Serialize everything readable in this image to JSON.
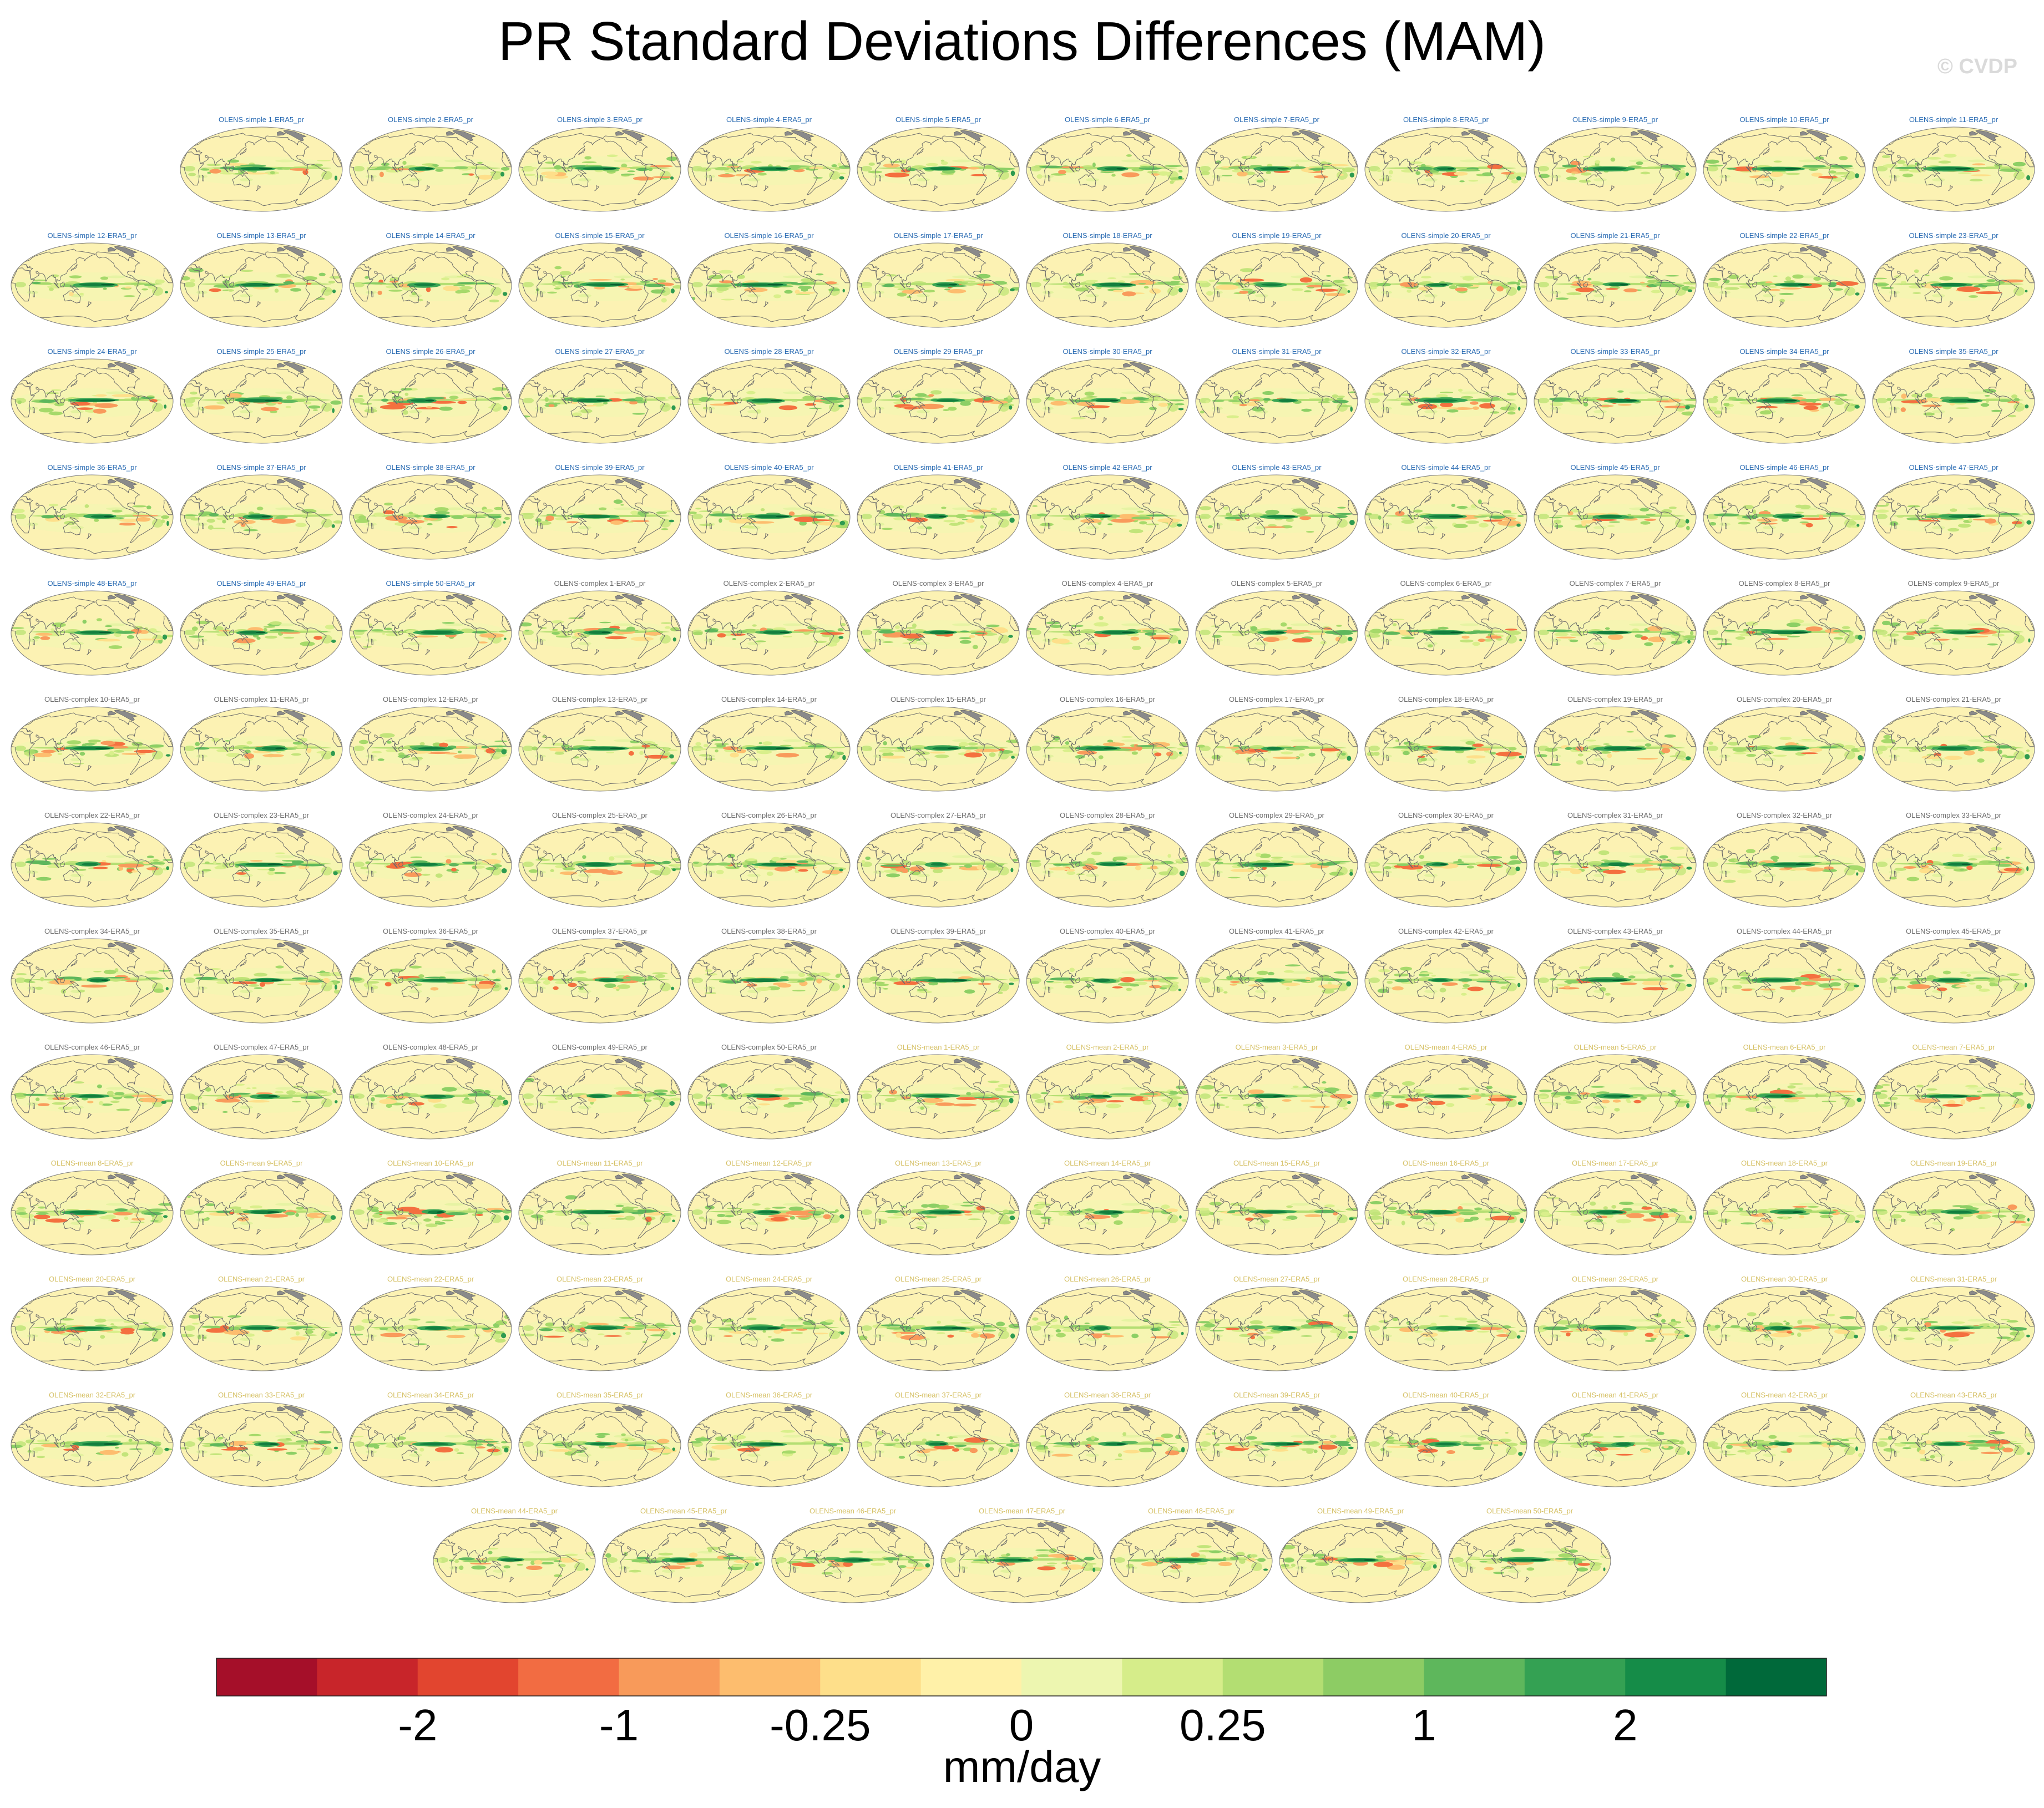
{
  "title": "PR Standard Deviations Differences (MAM)",
  "watermark": "© CVDP",
  "panel_groups": [
    {
      "label_color": "#2b6cb3",
      "labels": [
        "OLENS-simple 1-ERA5_pr",
        "OLENS-simple 2-ERA5_pr",
        "OLENS-simple 3-ERA5_pr",
        "OLENS-simple 4-ERA5_pr",
        "OLENS-simple 5-ERA5_pr",
        "OLENS-simple 6-ERA5_pr",
        "OLENS-simple 7-ERA5_pr",
        "OLENS-simple 8-ERA5_pr",
        "OLENS-simple 9-ERA5_pr",
        "OLENS-simple 10-ERA5_pr",
        "OLENS-simple 11-ERA5_pr",
        "OLENS-simple 12-ERA5_pr",
        "OLENS-simple 13-ERA5_pr",
        "OLENS-simple 14-ERA5_pr",
        "OLENS-simple 15-ERA5_pr",
        "OLENS-simple 16-ERA5_pr",
        "OLENS-simple 17-ERA5_pr",
        "OLENS-simple 18-ERA5_pr",
        "OLENS-simple 19-ERA5_pr",
        "OLENS-simple 20-ERA5_pr",
        "OLENS-simple 21-ERA5_pr",
        "OLENS-simple 22-ERA5_pr",
        "OLENS-simple 23-ERA5_pr",
        "OLENS-simple 24-ERA5_pr",
        "OLENS-simple 25-ERA5_pr",
        "OLENS-simple 26-ERA5_pr",
        "OLENS-simple 27-ERA5_pr",
        "OLENS-simple 28-ERA5_pr",
        "OLENS-simple 29-ERA5_pr",
        "OLENS-simple 30-ERA5_pr",
        "OLENS-simple 31-ERA5_pr",
        "OLENS-simple 32-ERA5_pr",
        "OLENS-simple 33-ERA5_pr",
        "OLENS-simple 34-ERA5_pr",
        "OLENS-simple 35-ERA5_pr",
        "OLENS-simple 36-ERA5_pr",
        "OLENS-simple 37-ERA5_pr",
        "OLENS-simple 38-ERA5_pr",
        "OLENS-simple 39-ERA5_pr",
        "OLENS-simple 40-ERA5_pr",
        "OLENS-simple 41-ERA5_pr",
        "OLENS-simple 42-ERA5_pr",
        "OLENS-simple 43-ERA5_pr",
        "OLENS-simple 44-ERA5_pr",
        "OLENS-simple 45-ERA5_pr",
        "OLENS-simple 46-ERA5_pr",
        "OLENS-simple 47-ERA5_pr",
        "OLENS-simple 48-ERA5_pr",
        "OLENS-simple 49-ERA5_pr",
        "OLENS-simple 50-ERA5_pr"
      ]
    },
    {
      "label_color": "#6e6e6e",
      "labels": [
        "OLENS-complex 1-ERA5_pr",
        "OLENS-complex 2-ERA5_pr",
        "OLENS-complex 3-ERA5_pr",
        "OLENS-complex 4-ERA5_pr",
        "OLENS-complex 5-ERA5_pr",
        "OLENS-complex 6-ERA5_pr",
        "OLENS-complex 7-ERA5_pr",
        "OLENS-complex 8-ERA5_pr",
        "OLENS-complex 9-ERA5_pr",
        "OLENS-complex 10-ERA5_pr",
        "OLENS-complex 11-ERA5_pr",
        "OLENS-complex 12-ERA5_pr",
        "OLENS-complex 13-ERA5_pr",
        "OLENS-complex 14-ERA5_pr",
        "OLENS-complex 15-ERA5_pr",
        "OLENS-complex 16-ERA5_pr",
        "OLENS-complex 17-ERA5_pr",
        "OLENS-complex 18-ERA5_pr",
        "OLENS-complex 19-ERA5_pr",
        "OLENS-complex 20-ERA5_pr",
        "OLENS-complex 21-ERA5_pr",
        "OLENS-complex 22-ERA5_pr",
        "OLENS-complex 23-ERA5_pr",
        "OLENS-complex 24-ERA5_pr",
        "OLENS-complex 25-ERA5_pr",
        "OLENS-complex 26-ERA5_pr",
        "OLENS-complex 27-ERA5_pr",
        "OLENS-complex 28-ERA5_pr",
        "OLENS-complex 29-ERA5_pr",
        "OLENS-complex 30-ERA5_pr",
        "OLENS-complex 31-ERA5_pr",
        "OLENS-complex 32-ERA5_pr",
        "OLENS-complex 33-ERA5_pr",
        "OLENS-complex 34-ERA5_pr",
        "OLENS-complex 35-ERA5_pr",
        "OLENS-complex 36-ERA5_pr",
        "OLENS-complex 37-ERA5_pr",
        "OLENS-complex 38-ERA5_pr",
        "OLENS-complex 39-ERA5_pr",
        "OLENS-complex 40-ERA5_pr",
        "OLENS-complex 41-ERA5_pr",
        "OLENS-complex 42-ERA5_pr",
        "OLENS-complex 43-ERA5_pr",
        "OLENS-complex 44-ERA5_pr",
        "OLENS-complex 45-ERA5_pr",
        "OLENS-complex 46-ERA5_pr",
        "OLENS-complex 47-ERA5_pr",
        "OLENS-complex 48-ERA5_pr",
        "OLENS-complex 49-ERA5_pr",
        "OLENS-complex 50-ERA5_pr"
      ]
    },
    {
      "label_color": "#d6c166",
      "labels": [
        "OLENS-mean 1-ERA5_pr",
        "OLENS-mean 2-ERA5_pr",
        "OLENS-mean 3-ERA5_pr",
        "OLENS-mean 4-ERA5_pr",
        "OLENS-mean 5-ERA5_pr",
        "OLENS-mean 6-ERA5_pr",
        "OLENS-mean 7-ERA5_pr",
        "OLENS-mean 8-ERA5_pr",
        "OLENS-mean 9-ERA5_pr",
        "OLENS-mean 10-ERA5_pr",
        "OLENS-mean 11-ERA5_pr",
        "OLENS-mean 12-ERA5_pr",
        "OLENS-mean 13-ERA5_pr",
        "OLENS-mean 14-ERA5_pr",
        "OLENS-mean 15-ERA5_pr",
        "OLENS-mean 16-ERA5_pr",
        "OLENS-mean 17-ERA5_pr",
        "OLENS-mean 18-ERA5_pr",
        "OLENS-mean 19-ERA5_pr",
        "OLENS-mean 20-ERA5_pr",
        "OLENS-mean 21-ERA5_pr",
        "OLENS-mean 22-ERA5_pr",
        "OLENS-mean 23-ERA5_pr",
        "OLENS-mean 24-ERA5_pr",
        "OLENS-mean 25-ERA5_pr",
        "OLENS-mean 26-ERA5_pr",
        "OLENS-mean 27-ERA5_pr",
        "OLENS-mean 28-ERA5_pr",
        "OLENS-mean 29-ERA5_pr",
        "OLENS-mean 30-ERA5_pr",
        "OLENS-mean 31-ERA5_pr",
        "OLENS-mean 32-ERA5_pr",
        "OLENS-mean 33-ERA5_pr",
        "OLENS-mean 34-ERA5_pr",
        "OLENS-mean 35-ERA5_pr",
        "OLENS-mean 36-ERA5_pr",
        "OLENS-mean 37-ERA5_pr",
        "OLENS-mean 38-ERA5_pr",
        "OLENS-mean 39-ERA5_pr",
        "OLENS-mean 40-ERA5_pr",
        "OLENS-mean 41-ERA5_pr",
        "OLENS-mean 42-ERA5_pr",
        "OLENS-mean 43-ERA5_pr",
        "OLENS-mean 44-ERA5_pr",
        "OLENS-mean 45-ERA5_pr",
        "OLENS-mean 46-ERA5_pr",
        "OLENS-mean 47-ERA5_pr",
        "OLENS-mean 48-ERA5_pr",
        "OLENS-mean 49-ERA5_pr",
        "OLENS-mean 50-ERA5_pr"
      ]
    }
  ],
  "colorbar": {
    "colors": [
      "#a50f29",
      "#c8252a",
      "#e2452f",
      "#f26c42",
      "#f89a5a",
      "#fdbd6e",
      "#fedf8a",
      "#fff1a8",
      "#edf6b0",
      "#d6ed8a",
      "#b3de72",
      "#8dcc64",
      "#5eb75c",
      "#34a153",
      "#158c48",
      "#00693a"
    ],
    "tick_labels": [
      "-2",
      "-1",
      "-0.25",
      "0",
      "0.25",
      "1",
      "2"
    ],
    "units": "mm/day"
  }
}
